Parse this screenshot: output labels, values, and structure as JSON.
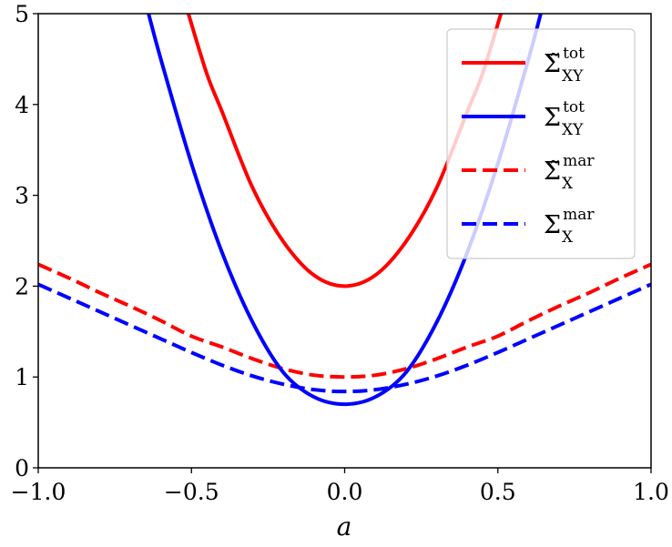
{
  "chart_data": {
    "type": "line",
    "xlabel": "a",
    "ylabel": "",
    "xlim": [
      -1.0,
      1.0
    ],
    "ylim": [
      0,
      5
    ],
    "xticks": [
      "−1.0",
      "−0.5",
      "0.0",
      "0.5",
      "1.0"
    ],
    "xtick_values": [
      -1.0,
      -0.5,
      0.0,
      0.5,
      1.0
    ],
    "yticks": [
      "0",
      "1",
      "2",
      "3",
      "4",
      "5"
    ],
    "ytick_values": [
      0,
      1,
      2,
      3,
      4,
      5
    ],
    "grid": false,
    "legend_position": "top-right",
    "series": [
      {
        "key": "sigma_tilde_tot_xy",
        "label_main": "Σ̃",
        "label_sup": "tot",
        "label_sub": "XY",
        "color": "#ff0000",
        "dash": "solid",
        "x": [
          -0.51,
          -0.45,
          -0.4,
          -0.3,
          -0.2,
          -0.1,
          0.0,
          0.1,
          0.2,
          0.3,
          0.4,
          0.45,
          0.51
        ],
        "y": [
          5.0,
          4.34,
          3.92,
          3.08,
          2.49,
          2.12,
          2.0,
          2.12,
          2.49,
          3.08,
          3.92,
          4.34,
          5.0
        ]
      },
      {
        "key": "sigma_tot_xy",
        "label_main": "Σ",
        "label_sup": "tot",
        "label_sub": "XY",
        "color": "#0000ff",
        "dash": "solid",
        "x": [
          -0.64,
          -0.6,
          -0.5,
          -0.4,
          -0.3,
          -0.2,
          -0.1,
          0.0,
          0.1,
          0.2,
          0.3,
          0.4,
          0.5,
          0.6,
          0.64
        ],
        "y": [
          5.0,
          4.5,
          3.35,
          2.37,
          1.6,
          1.05,
          0.78,
          0.7,
          0.78,
          1.05,
          1.6,
          2.37,
          3.35,
          4.5,
          5.0
        ]
      },
      {
        "key": "sigma_tilde_mar_x",
        "label_main": "Σ̃",
        "label_sup": "mar",
        "label_sub": "X",
        "color": "#ff0000",
        "dash": "dashed",
        "x": [
          -1.0,
          -0.9,
          -0.8,
          -0.7,
          -0.6,
          -0.5,
          -0.4,
          -0.3,
          -0.2,
          -0.1,
          0.0,
          0.1,
          0.2,
          0.3,
          0.4,
          0.5,
          0.6,
          0.7,
          0.8,
          0.9,
          1.0
        ],
        "y": [
          2.24,
          2.09,
          1.93,
          1.78,
          1.62,
          1.45,
          1.33,
          1.2,
          1.09,
          1.02,
          1.0,
          1.02,
          1.09,
          1.2,
          1.33,
          1.45,
          1.62,
          1.78,
          1.93,
          2.09,
          2.24
        ]
      },
      {
        "key": "sigma_mar_x",
        "label_main": "Σ",
        "label_sup": "mar",
        "label_sub": "X",
        "color": "#0000ff",
        "dash": "dashed",
        "x": [
          -1.0,
          -0.9,
          -0.8,
          -0.7,
          -0.6,
          -0.5,
          -0.4,
          -0.3,
          -0.2,
          -0.1,
          0.0,
          0.1,
          0.2,
          0.3,
          0.4,
          0.5,
          0.6,
          0.7,
          0.8,
          0.9,
          1.0
        ],
        "y": [
          2.02,
          1.87,
          1.72,
          1.57,
          1.42,
          1.27,
          1.13,
          1.01,
          0.92,
          0.86,
          0.84,
          0.86,
          0.92,
          1.01,
          1.13,
          1.27,
          1.42,
          1.57,
          1.72,
          1.87,
          2.02
        ]
      }
    ]
  }
}
